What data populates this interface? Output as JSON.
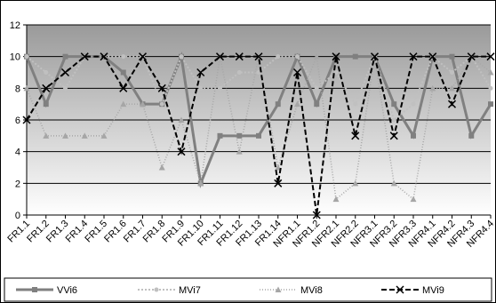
{
  "chart_data": {
    "type": "line",
    "categories": [
      "FR1.1",
      "FR1.2",
      "FR1.3",
      "FR1.4",
      "FR1.5",
      "FR1.6",
      "FR1.7",
      "FR1.8",
      "FR1.9",
      "FR1.10",
      "FR1.11",
      "FR1.12",
      "FR1.13",
      "FR1.14",
      "NFR1.1",
      "NFR1.2",
      "NFR2.1",
      "NFR2.2",
      "NFR3.1",
      "NFR3.2",
      "NFR3.3",
      "NFR4.1",
      "NFR4.2",
      "NFR4.3",
      "NFR4.4"
    ],
    "series": [
      {
        "name": "VVi6",
        "color": "#808080",
        "values": [
          10,
          7,
          10,
          10,
          10,
          9,
          7,
          7,
          10,
          2,
          5,
          5,
          5,
          7,
          10,
          7,
          10,
          10,
          10,
          7,
          5,
          10,
          10,
          5,
          7
        ]
      },
      {
        "name": "MVi7",
        "color": "#c0c0c0",
        "values": [
          10,
          9,
          8,
          10,
          10,
          10,
          10,
          7,
          10,
          8,
          8,
          9,
          9,
          10,
          10,
          8,
          9,
          7,
          10,
          6,
          7,
          10,
          9,
          10,
          8
        ]
      },
      {
        "name": "MVi8",
        "color": "#a6a6a6",
        "values": [
          8,
          5,
          5,
          5,
          5,
          7,
          7,
          3,
          6,
          2,
          10,
          4,
          10,
          3,
          7,
          10,
          1,
          2,
          10,
          2,
          1,
          8,
          8,
          10,
          9
        ]
      },
      {
        "name": "MVi9",
        "color": "#000000",
        "values": [
          6,
          8,
          9,
          10,
          10,
          8,
          10,
          8,
          4,
          9,
          10,
          10,
          10,
          2,
          9,
          0,
          10,
          5,
          10,
          5,
          10,
          10,
          7,
          10,
          10
        ]
      }
    ],
    "ylim": [
      0,
      12
    ],
    "yticks": [
      0,
      2,
      4,
      6,
      8,
      10,
      12
    ],
    "grid": true,
    "legend": "bottom"
  }
}
